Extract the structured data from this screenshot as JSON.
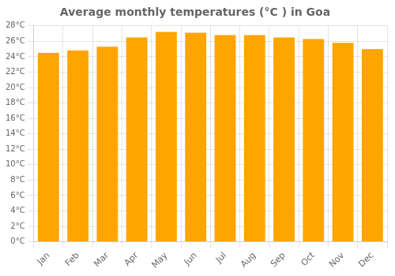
{
  "chart_data": {
    "type": "bar",
    "title": "Average monthly temperatures (°C ) in Goa",
    "categories": [
      "Jan",
      "Feb",
      "Mar",
      "Apr",
      "May",
      "Jun",
      "Jul",
      "Aug",
      "Sep",
      "Oct",
      "Nov",
      "Dec"
    ],
    "values": [
      24.5,
      24.8,
      25.3,
      26.5,
      27.2,
      27.1,
      26.8,
      26.8,
      26.5,
      26.3,
      25.8,
      25.0
    ],
    "color": "#FFA500",
    "ylim": [
      0,
      28
    ],
    "yticks": [
      {
        "value": 0,
        "label": "0°C"
      },
      {
        "value": 2,
        "label": "2°C"
      },
      {
        "value": 4,
        "label": "4°C"
      },
      {
        "value": 6,
        "label": "6°C"
      },
      {
        "value": 8,
        "label": "8°C"
      },
      {
        "value": 10,
        "label": "10°C"
      },
      {
        "value": 12,
        "label": "12°C"
      },
      {
        "value": 14,
        "label": "14°C"
      },
      {
        "value": 16,
        "label": "16°C"
      },
      {
        "value": 18,
        "label": "18°C"
      },
      {
        "value": 20,
        "label": "20°C"
      },
      {
        "value": 22,
        "label": "22°C"
      },
      {
        "value": 24,
        "label": "24°C"
      },
      {
        "value": 26,
        "label": "26°C"
      },
      {
        "value": 28,
        "label": "28°C"
      }
    ],
    "grid": true
  }
}
